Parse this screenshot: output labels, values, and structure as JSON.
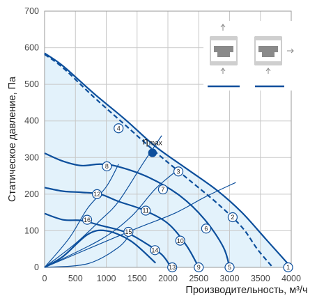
{
  "chart_data": {
    "type": "line",
    "xlabel": "Производительность, м³/ч",
    "ylabel": "Статическое давление, Па",
    "xlim": [
      0,
      4000
    ],
    "ylim": [
      0,
      700
    ],
    "x_ticks": [
      "0",
      "500",
      "1000",
      "1500",
      "2000",
      "2500",
      "3000",
      "3500",
      "4000"
    ],
    "y_ticks": [
      "0",
      "100",
      "200",
      "300",
      "400",
      "500",
      "600",
      "700"
    ],
    "grid": true,
    "colors": {
      "curve": "#0d4f9c",
      "fill": "#e3f2fb",
      "grid": "#c8c8c8",
      "frame": "#999999"
    },
    "envelope": {
      "x": [
        0,
        300,
        800,
        1300,
        1800,
        2300,
        2800,
        3200,
        3600,
        4000
      ],
      "y": [
        585,
        550,
        475,
        405,
        330,
        270,
        210,
        150,
        75,
        0
      ]
    },
    "dashed_curve": {
      "x": [
        0,
        300,
        800,
        1300,
        1800,
        2300,
        2800,
        3200,
        3450,
        3700
      ],
      "y": [
        582,
        545,
        465,
        390,
        315,
        245,
        175,
        110,
        50,
        0
      ]
    },
    "series": [
      {
        "x": [
          0,
          300,
          600,
          900,
          1200,
          1700,
          2200,
          2600,
          2900,
          3000
        ],
        "y": [
          312,
          290,
          278,
          282,
          275,
          245,
          195,
          130,
          55,
          0
        ]
      },
      {
        "x": [
          0,
          300,
          600,
          900,
          1200,
          1600,
          2000,
          2300,
          2500
        ],
        "y": [
          218,
          208,
          205,
          200,
          180,
          157,
          120,
          60,
          0
        ]
      },
      {
        "x": [
          0,
          300,
          600,
          900,
          1300,
          1600,
          1900,
          2050
        ],
        "y": [
          147,
          130,
          128,
          115,
          97,
          70,
          35,
          0
        ]
      },
      {
        "x": [
          0,
          300,
          700,
          1000,
          1400,
          1800
        ],
        "y": [
          0,
          30,
          90,
          100,
          72,
          12
        ]
      }
    ],
    "efficiency_lines": [
      {
        "x": [
          0,
          1400,
          2100,
          2600,
          3100
        ],
        "y": [
          0,
          100,
          147,
          192,
          232
        ]
      },
      {
        "x": [
          0,
          900,
          1400,
          1800,
          2150
        ],
        "y": [
          0,
          75,
          138,
          215,
          265
        ]
      },
      {
        "x": [
          0,
          500,
          900,
          1200,
          1600,
          1900
        ],
        "y": [
          0,
          65,
          128,
          180,
          285,
          360
        ]
      },
      {
        "x": [
          0,
          400,
          700,
          1000,
          1200
        ],
        "y": [
          0,
          80,
          162,
          220,
          282
        ]
      },
      {
        "x": [
          0,
          700,
          1200,
          1400
        ],
        "y": [
          0,
          10,
          55,
          95
        ]
      }
    ],
    "markers": [
      {
        "n": "1",
        "x": 3950,
        "y": 0
      },
      {
        "n": "2",
        "x": 3050,
        "y": 137
      },
      {
        "n": "3",
        "x": 2170,
        "y": 262
      },
      {
        "n": "4",
        "x": 1200,
        "y": 380
      },
      {
        "n": "5",
        "x": 3000,
        "y": 0
      },
      {
        "n": "6",
        "x": 2620,
        "y": 106
      },
      {
        "n": "7",
        "x": 1920,
        "y": 213
      },
      {
        "n": "8",
        "x": 1010,
        "y": 276
      },
      {
        "n": "9",
        "x": 2500,
        "y": 0
      },
      {
        "n": "10",
        "x": 2200,
        "y": 73
      },
      {
        "n": "11",
        "x": 1640,
        "y": 155
      },
      {
        "n": "12",
        "x": 850,
        "y": 200
      },
      {
        "n": "13",
        "x": 2070,
        "y": 0
      },
      {
        "n": "14",
        "x": 1790,
        "y": 47
      },
      {
        "n": "15",
        "x": 1360,
        "y": 97
      },
      {
        "n": "16",
        "x": 690,
        "y": 130
      }
    ],
    "efficiency_point": {
      "label": "η",
      "sub": "max",
      "x": 1750,
      "y": 313
    }
  }
}
